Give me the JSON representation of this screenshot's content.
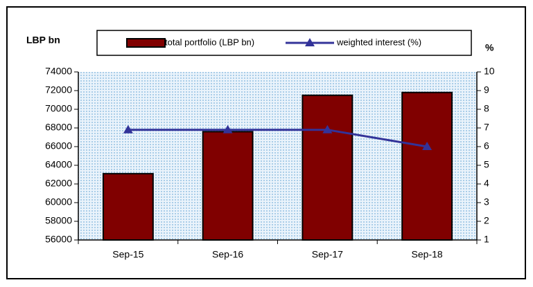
{
  "chart_data": {
    "type": "bar",
    "categories": [
      "Sep-15",
      "Sep-16",
      "Sep-17",
      "Sep-18"
    ],
    "ylabel": "LBP bn",
    "y2label": "%",
    "ylim": [
      56000,
      74000
    ],
    "yticks": [
      56000,
      58000,
      60000,
      62000,
      64000,
      66000,
      68000,
      70000,
      72000,
      74000
    ],
    "y2lim": [
      1,
      10
    ],
    "y2ticks": [
      1,
      2,
      3,
      4,
      5,
      6,
      7,
      8,
      9,
      10
    ],
    "series": [
      {
        "name": "total portfolio (LBP bn)",
        "type": "bar",
        "color": "#800000",
        "values": [
          63100,
          67600,
          71500,
          71800
        ]
      },
      {
        "name": "weighted interest (%)",
        "type": "line",
        "axis": "y2",
        "color": "#333399",
        "values": [
          6.9,
          6.9,
          6.9,
          6.0
        ]
      }
    ]
  }
}
